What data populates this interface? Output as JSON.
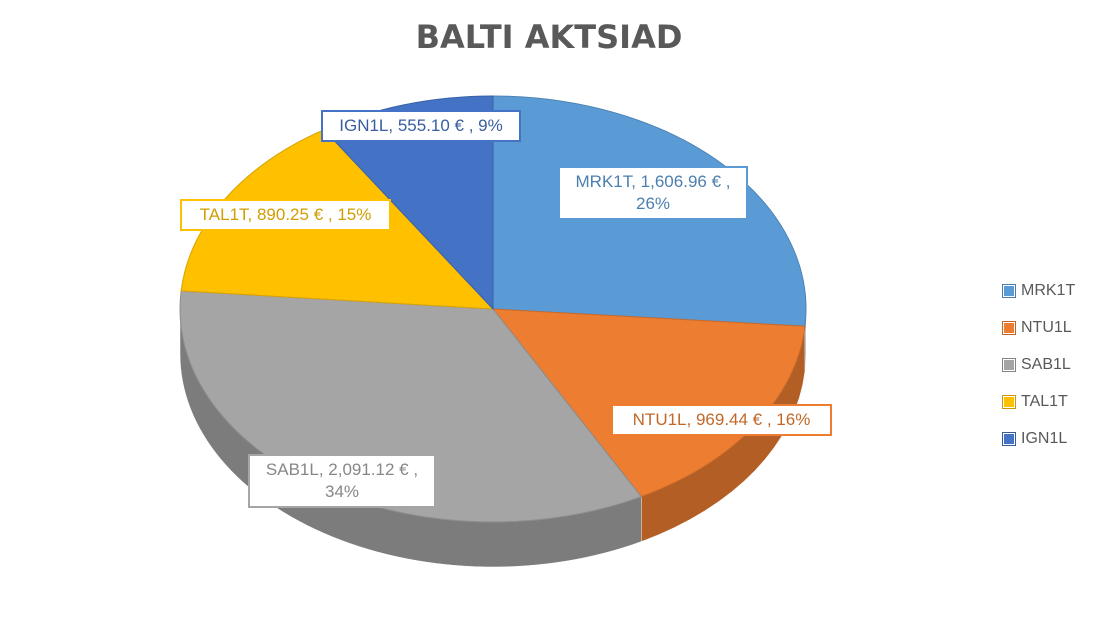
{
  "chart_data": {
    "type": "pie",
    "title": "BALTI AKTSIAD",
    "slices": [
      {
        "name": "MRK1T",
        "value": 1606.96,
        "label": "MRK1T,  1,606.96 € ,\n26%",
        "color": "#5B9BD5"
      },
      {
        "name": "NTU1L",
        "value": 969.44,
        "label": "NTU1L,  969.44 € , 16%",
        "color": "#ED7D31"
      },
      {
        "name": "SAB1L",
        "value": 2091.12,
        "label": "SAB1L,  2,091.12 € ,\n34%",
        "color": "#A5A5A5"
      },
      {
        "name": "TAL1T",
        "value": 890.25,
        "label": "TAL1T,  890.25 € , 15%",
        "color": "#FFC000"
      },
      {
        "name": "IGN1L",
        "value": 555.1,
        "label": "IGN1L,  555.10 € , 9%",
        "color": "#4472C4"
      }
    ],
    "legend_position": "right",
    "style": "3d-pie"
  }
}
